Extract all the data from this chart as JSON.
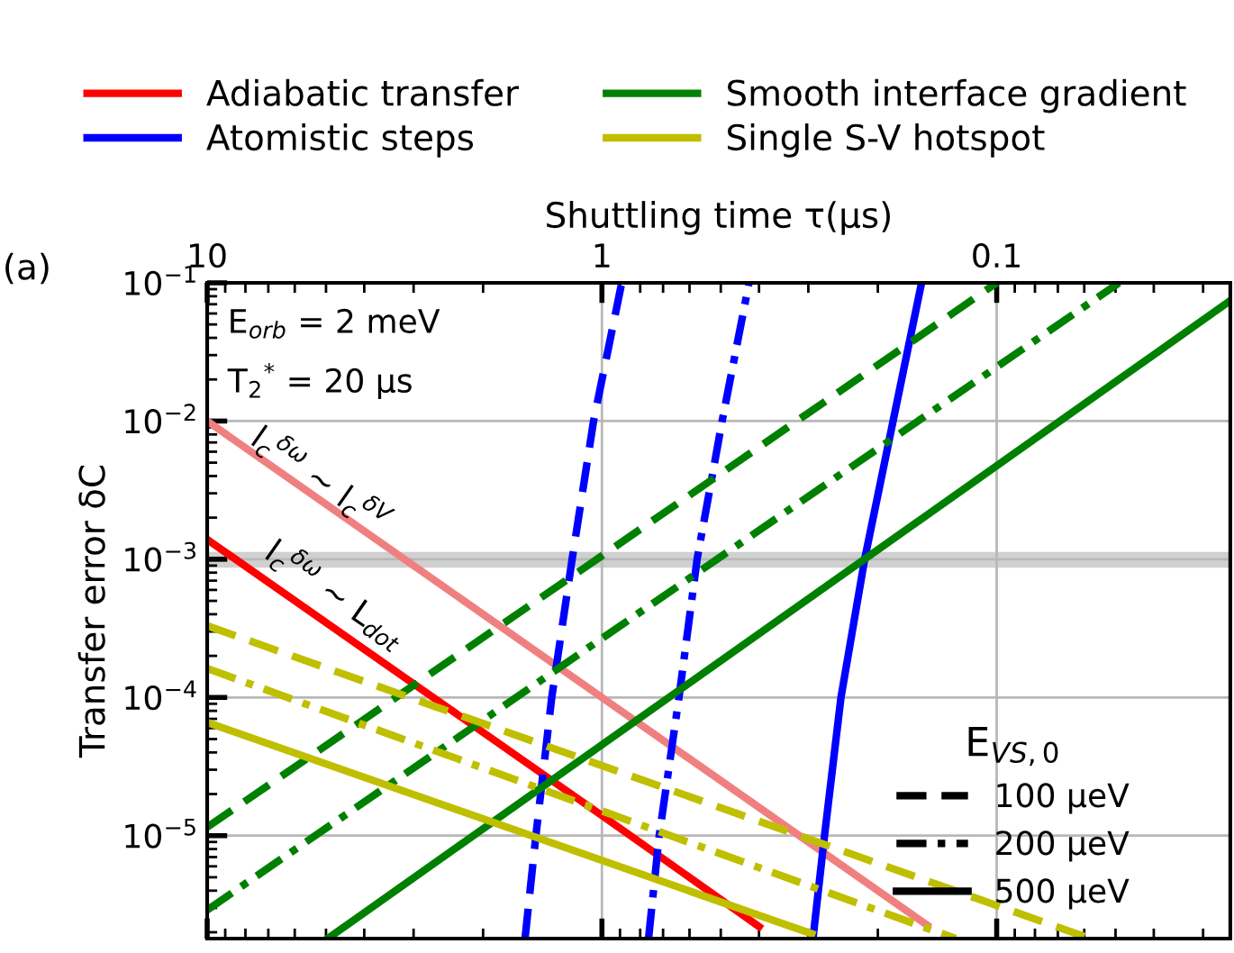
{
  "chart_data": {
    "type": "line",
    "xlabel": "Shuttling time τ(μs)",
    "ylabel": "Transfer error δC",
    "log": "xy",
    "grid": true,
    "legend": "top",
    "legend_title": "E$_{VS,0}$",
    "xlim": [
      10,
      0.0256
    ],
    "xticks": [
      10,
      1,
      0.1
    ],
    "ylim": [
      1.8e-06,
      0.1
    ],
    "yticks": [
      {
        "value": 0.1,
        "label": "10$^{−1}$"
      },
      {
        "value": 0.01,
        "label": "10$^{−2}$"
      },
      {
        "value": 0.001,
        "label": "10$^{−3}$"
      },
      {
        "value": 0.0001,
        "label": "10$^{−4}$"
      },
      {
        "value": 1e-05,
        "label": "10$^{−5}$"
      }
    ],
    "bands": [
      {
        "axis": "y",
        "from": 0.00087,
        "to": 0.00113,
        "color": "#b0b0b0"
      }
    ],
    "series": [
      {
        "name": "Adiabatic transfer",
        "color": "#ff0000",
        "line_style": "solid",
        "x": [
          10,
          1,
          0.4
        ],
        "values": [
          0.00139,
          1.4e-05,
          2.2e-06
        ]
      },
      {
        "color": "#f08080",
        "line_style": "solid",
        "x": [
          10,
          1,
          0.15
        ],
        "values": [
          0.01,
          0.0001,
          2.25e-06
        ]
      },
      {
        "color": "#0000ff",
        "line_style": "dashed",
        "x": [
          1.566,
          1.47,
          1.34,
          1.19,
          1.05,
          0.891
        ],
        "values": [
          1.8e-06,
          1e-05,
          0.0001,
          0.001,
          0.01,
          0.1
        ]
      },
      {
        "color": "#0000ff",
        "line_style": "dashdot",
        "x": [
          0.762,
          0.716,
          0.638,
          0.574,
          0.496,
          0.424
        ],
        "values": [
          1.8e-06,
          1e-05,
          0.0001,
          0.001,
          0.01,
          0.1
        ]
      },
      {
        "name": "Atomistic steps",
        "color": "#0000ff",
        "line_style": "solid",
        "x": [
          0.292,
          0.273,
          0.248,
          0.216,
          0.183,
          0.155
        ],
        "values": [
          1.8e-06,
          1e-05,
          0.0001,
          0.001,
          0.01,
          0.1
        ]
      },
      {
        "color": "#008000",
        "line_style": "dashed",
        "x": [
          10,
          1,
          0.1
        ],
        "values": [
          1.15e-05,
          0.00106,
          0.1
        ]
      },
      {
        "color": "#008000",
        "line_style": "dashdot",
        "x": [
          10,
          0.049
        ],
        "values": [
          2.9e-06,
          0.1
        ]
      },
      {
        "name": "Smooth interface gradient",
        "color": "#008000",
        "line_style": "solid",
        "x": [
          4.95,
          0.026
        ],
        "values": [
          1.8e-06,
          0.072
        ]
      },
      {
        "color": "#bfbf00",
        "line_style": "dashed",
        "x": [
          10,
          0.058
        ],
        "values": [
          0.00033,
          1.8e-06
        ]
      },
      {
        "color": "#bfbf00",
        "line_style": "dashdot",
        "x": [
          10,
          0.127
        ],
        "values": [
          0.000162,
          1.8e-06
        ]
      },
      {
        "name": "Single S-V hotspot",
        "color": "#bfbf00",
        "line_style": "solid",
        "x": [
          10,
          0.294
        ],
        "values": [
          6.6e-05,
          1.95e-06
        ]
      },
      {
        "name": "100 μeV",
        "color": "#000000",
        "line_style": "dashed"
      },
      {
        "name": "200 μeV",
        "color": "#000000",
        "line_style": "dashdot"
      },
      {
        "name": "500 μeV",
        "color": "#000000",
        "line_style": "solid"
      }
    ],
    "annotations": [
      "(a)",
      "E$_{orb}$ = 2 meV",
      "T$_{2}$$^{*}$ = 20 μs",
      "l$_{c}$$^{δω}$ ~ l$_{c}$$^{δV}$",
      "l$_{c}$$^{δω}$ ~ L$_{dot}$"
    ]
  }
}
